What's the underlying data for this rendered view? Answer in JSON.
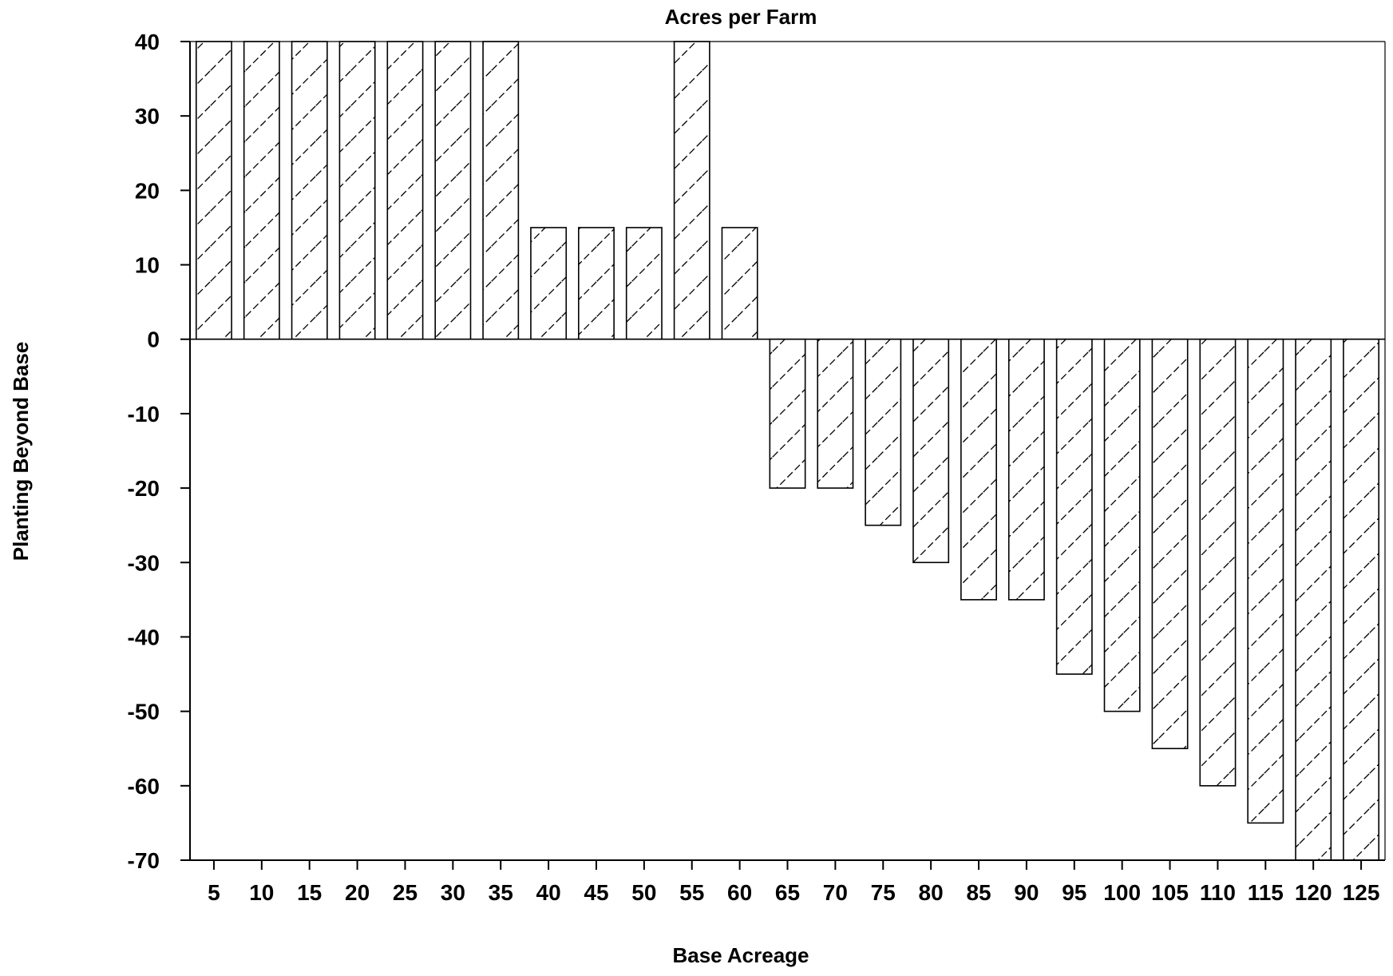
{
  "chart_data": {
    "type": "bar",
    "title": "Acres per Farm",
    "xlabel": "Base Acreage",
    "ylabel": "Planting Beyond Base",
    "categories": [
      "5",
      "10",
      "15",
      "20",
      "25",
      "30",
      "35",
      "40",
      "45",
      "50",
      "55",
      "60",
      "65",
      "70",
      "75",
      "80",
      "85",
      "90",
      "95",
      "100",
      "105",
      "110",
      "115",
      "120",
      "125"
    ],
    "values": [
      40,
      40,
      40,
      40,
      40,
      40,
      40,
      15,
      15,
      15,
      40,
      15,
      -20,
      -20,
      -25,
      -30,
      -35,
      -35,
      -45,
      -50,
      -55,
      -60,
      -65,
      -70,
      -70
    ],
    "ylim": [
      -70,
      40
    ],
    "yticks": [
      40,
      30,
      20,
      10,
      0,
      -10,
      -20,
      -30,
      -40,
      -50,
      -60,
      -70
    ],
    "grid": false,
    "bar_fill": "hatched",
    "colors": {
      "bar_stroke": "#000000",
      "hatch": "#000000",
      "background": "#ffffff"
    }
  }
}
